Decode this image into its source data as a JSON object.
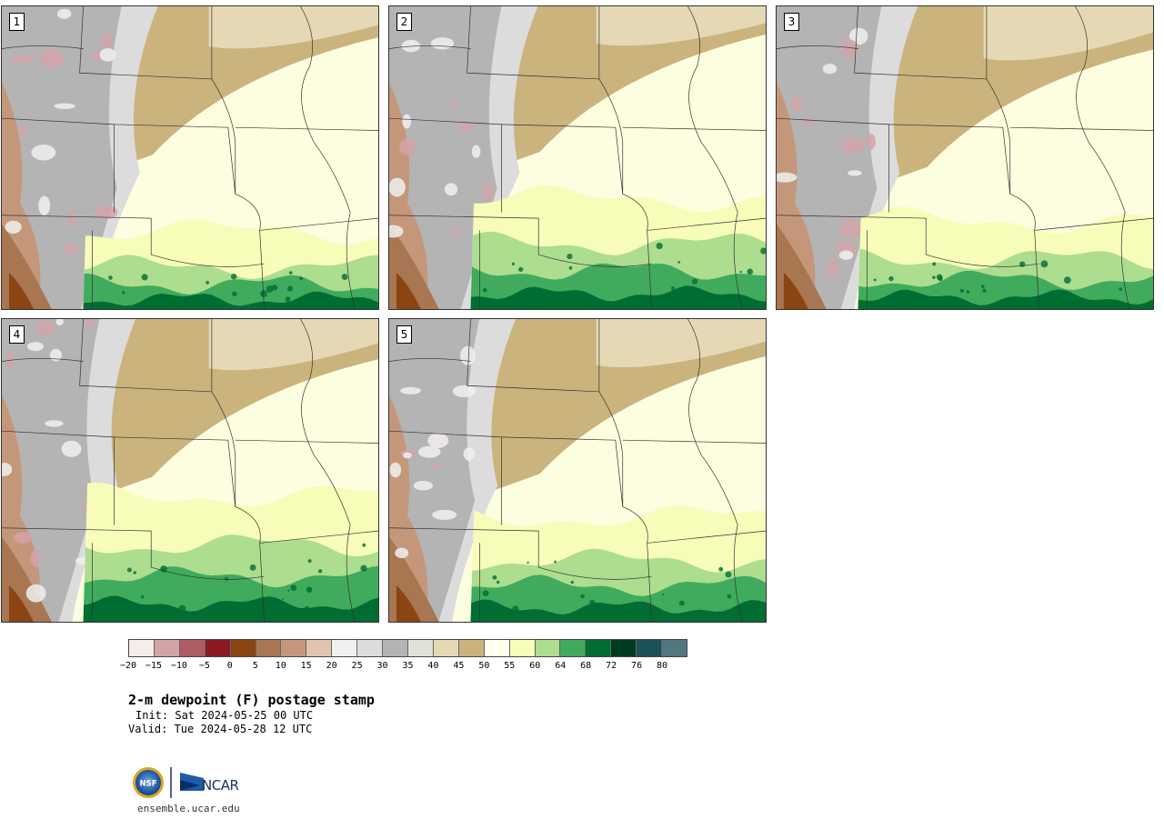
{
  "title": "2-m dewpoint (F) postage stamp",
  "init_label": "Init: Sat 2024-05-25 00 UTC",
  "valid_label": "Valid: Tue 2024-05-28 12 UTC",
  "footer_url": "ensemble.ucar.edu",
  "logos": {
    "nsf": "NSF",
    "ncar": "NCAR"
  },
  "panels": [
    {
      "member": "1",
      "moist_level": 0.55
    },
    {
      "member": "2",
      "moist_level": 0.85
    },
    {
      "member": "3",
      "moist_level": 0.65
    },
    {
      "member": "4",
      "moist_level": 1.0
    },
    {
      "member": "5",
      "moist_level": 0.8
    }
  ],
  "colorbar": {
    "ticks": [
      "−20",
      "−15",
      "−10",
      "−5",
      "0",
      "5",
      "10",
      "15",
      "20",
      "25",
      "30",
      "35",
      "40",
      "45",
      "50",
      "55",
      "60",
      "64",
      "68",
      "72",
      "76",
      "80"
    ],
    "colors": [
      "#f5ecec",
      "#d4a3a8",
      "#b05c63",
      "#8b1a24",
      "#8b4513",
      "#a87650",
      "#c4977b",
      "#e0c4b0",
      "#f0f0f0",
      "#dcdcdc",
      "#b4b4b4",
      "#e1e1d7",
      "#e5d9b5",
      "#cbb37e",
      "#fffff0",
      "#f7fcb9",
      "#addd8e",
      "#41ab5d",
      "#006d32",
      "#003c22",
      "#1b5157",
      "#52787e"
    ]
  }
}
